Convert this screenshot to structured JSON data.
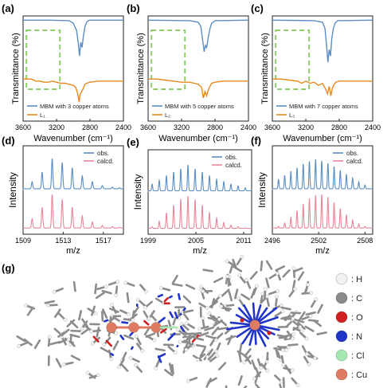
{
  "colors": {
    "blue": "#5b8ec4",
    "orange": "#e8891e",
    "pink": "#e8889b",
    "dash": "#8fce68",
    "H": "#f2f2f2",
    "C": "#8a8a8a",
    "O": "#d01f1f",
    "N": "#2034c8",
    "Cl": "#a6e8b4",
    "Cu": "#e07b63"
  },
  "chart_data": [
    {
      "panel": "(a)",
      "type": "line",
      "xlabel": "Wavenumber (cm⁻¹)",
      "ylabel": "Transmittance (%)",
      "xlim": [
        3600,
        2400
      ],
      "x_ticks": [
        "3600",
        "3200",
        "2800",
        "2400"
      ],
      "legend": [
        "MBM with 3 copper atoms",
        "L₁"
      ],
      "legend_position": "bottom-left",
      "series": [
        {
          "name": "MBM with 3 copper atoms",
          "x": [
            3600,
            3300,
            3050,
            3000,
            2960,
            2940,
            2925,
            2910,
            2895,
            2880,
            2860,
            2840,
            2820,
            2800,
            2400
          ],
          "y": [
            0.96,
            0.96,
            0.955,
            0.93,
            0.86,
            0.74,
            0.62,
            0.75,
            0.7,
            0.8,
            0.9,
            0.94,
            0.955,
            0.96,
            0.96
          ]
        },
        {
          "name": "L₁",
          "x": [
            3600,
            3500,
            3450,
            3400,
            3350,
            3300,
            3250,
            3200,
            3150,
            3100,
            3050,
            3000,
            2970,
            2950,
            2930,
            2920,
            2900,
            2880,
            2860,
            2840,
            2800,
            2700,
            2600,
            2500,
            2400
          ],
          "y": [
            0.4,
            0.4,
            0.38,
            0.38,
            0.37,
            0.37,
            0.38,
            0.37,
            0.36,
            0.36,
            0.35,
            0.34,
            0.32,
            0.27,
            0.18,
            0.25,
            0.28,
            0.31,
            0.35,
            0.36,
            0.37,
            0.38,
            0.38,
            0.38,
            0.38
          ]
        }
      ]
    },
    {
      "panel": "(b)",
      "type": "line",
      "xlabel": "Wavenumber (cm⁻¹)",
      "ylabel": "Transmittance (%)",
      "xlim": [
        3600,
        2400
      ],
      "x_ticks": [
        "3600",
        "3200",
        "2800",
        "2400"
      ],
      "legend": [
        "MBM with 5 copper atoms",
        "L₂"
      ],
      "legend_position": "bottom-left",
      "series": [
        {
          "name": "MBM with 5 copper atoms",
          "x": [
            3600,
            3100,
            3000,
            2970,
            2950,
            2930,
            2915,
            2900,
            2880,
            2860,
            2840,
            2800,
            2400
          ],
          "y": [
            0.96,
            0.955,
            0.94,
            0.9,
            0.78,
            0.66,
            0.72,
            0.7,
            0.8,
            0.88,
            0.93,
            0.955,
            0.96
          ]
        },
        {
          "name": "L₂",
          "x": [
            3600,
            3500,
            3400,
            3300,
            3200,
            3100,
            3050,
            3000,
            2960,
            2940,
            2920,
            2900,
            2880,
            2860,
            2840,
            2800,
            2700,
            2600,
            2500,
            2400
          ],
          "y": [
            0.4,
            0.4,
            0.39,
            0.38,
            0.37,
            0.37,
            0.36,
            0.35,
            0.32,
            0.22,
            0.28,
            0.24,
            0.3,
            0.33,
            0.36,
            0.37,
            0.38,
            0.38,
            0.38,
            0.38
          ]
        }
      ]
    },
    {
      "panel": "(c)",
      "type": "line",
      "xlabel": "Wavenumber (cm⁻¹)",
      "ylabel": "Transmittance (%)",
      "xlim": [
        3600,
        2400
      ],
      "x_ticks": [
        "3600",
        "3200",
        "2800",
        "2400"
      ],
      "legend": [
        "MBM with 7 copper atoms",
        "L₃"
      ],
      "legend_position": "bottom-left",
      "series": [
        {
          "name": "MBM with 7 copper atoms",
          "x": [
            3600,
            3100,
            3000,
            2970,
            2950,
            2935,
            2920,
            2905,
            2890,
            2870,
            2850,
            2820,
            2400
          ],
          "y": [
            0.96,
            0.955,
            0.94,
            0.88,
            0.7,
            0.56,
            0.68,
            0.62,
            0.78,
            0.88,
            0.93,
            0.955,
            0.96
          ]
        },
        {
          "name": "L₃",
          "x": [
            3600,
            3500,
            3400,
            3300,
            3250,
            3200,
            3150,
            3100,
            3050,
            3000,
            2960,
            2940,
            2920,
            2900,
            2880,
            2860,
            2840,
            2800,
            2700,
            2600,
            2500,
            2400
          ],
          "y": [
            0.4,
            0.4,
            0.39,
            0.38,
            0.36,
            0.38,
            0.36,
            0.37,
            0.34,
            0.36,
            0.3,
            0.26,
            0.33,
            0.24,
            0.32,
            0.35,
            0.37,
            0.38,
            0.38,
            0.38,
            0.38,
            0.38
          ]
        }
      ]
    },
    {
      "panel": "(d)",
      "type": "line",
      "xlabel": "m/z",
      "ylabel": "Intensity",
      "xlim": [
        1509,
        1519
      ],
      "x_ticks": [
        "1509",
        "1513",
        "1517"
      ],
      "legend": [
        "obs.",
        "calcd."
      ],
      "legend_position": "top-right",
      "series": [
        {
          "name": "obs.",
          "peaks_x": [
            1509.9,
            1510.9,
            1511.9,
            1512.9,
            1513.9,
            1514.9,
            1515.9,
            1516.9,
            1517.9,
            1518.6
          ],
          "peaks_y": [
            0.22,
            0.52,
            0.95,
            0.82,
            0.66,
            0.4,
            0.22,
            0.1,
            0.05,
            0.03
          ]
        },
        {
          "name": "calcd.",
          "peaks_x": [
            1509.9,
            1510.9,
            1511.9,
            1512.9,
            1513.9,
            1514.9,
            1515.9,
            1516.9,
            1517.9,
            1518.6
          ],
          "peaks_y": [
            0.28,
            0.62,
            1.0,
            0.85,
            0.62,
            0.36,
            0.18,
            0.08,
            0.04,
            0.02
          ]
        }
      ]
    },
    {
      "panel": "(e)",
      "type": "line",
      "xlabel": "m/z",
      "ylabel": "Intensity",
      "xlim": [
        1999,
        2012
      ],
      "x_ticks": [
        "1999",
        "2005",
        "2011"
      ],
      "legend": [
        "obs.",
        "calcd."
      ],
      "legend_position": "top-right",
      "series": [
        {
          "name": "obs.",
          "peaks_x": [
            1999.5,
            2000.4,
            2001.3,
            2002.2,
            2003.1,
            2004.0,
            2004.9,
            2005.8,
            2006.7,
            2007.6,
            2008.5,
            2009.4,
            2010.3,
            2011.2
          ],
          "peaks_y": [
            0.22,
            0.35,
            0.5,
            0.62,
            0.72,
            0.85,
            0.72,
            0.62,
            0.5,
            0.38,
            0.3,
            0.22,
            0.16,
            0.1
          ]
        },
        {
          "name": "calcd.",
          "peaks_x": [
            1999.5,
            2000.4,
            2001.3,
            2002.2,
            2003.1,
            2004.0,
            2004.9,
            2005.8,
            2006.7,
            2007.6,
            2008.5,
            2009.4,
            2010.3,
            2011.2
          ],
          "peaks_y": [
            0.05,
            0.22,
            0.48,
            0.72,
            0.92,
            1.0,
            0.9,
            0.72,
            0.5,
            0.32,
            0.18,
            0.1,
            0.05,
            0.02
          ]
        }
      ]
    },
    {
      "panel": "(f)",
      "type": "line",
      "xlabel": "m/z",
      "ylabel": "Intensity",
      "xlim": [
        2496,
        2509
      ],
      "x_ticks": [
        "2496",
        "2502",
        "2508"
      ],
      "legend": [
        "obs.",
        "calcd."
      ],
      "legend_position": "top-right",
      "series": [
        {
          "name": "obs.",
          "peaks_x": [
            2496.8,
            2497.6,
            2498.4,
            2499.2,
            2500.0,
            2500.8,
            2501.6,
            2502.4,
            2503.2,
            2504.0,
            2504.8,
            2505.6,
            2506.4,
            2507.2,
            2508.0
          ],
          "peaks_y": [
            0.3,
            0.42,
            0.55,
            0.66,
            0.78,
            0.86,
            0.92,
            0.88,
            0.8,
            0.7,
            0.58,
            0.46,
            0.34,
            0.22,
            0.12
          ]
        },
        {
          "name": "calcd.",
          "peaks_x": [
            2496.8,
            2497.6,
            2498.4,
            2499.2,
            2500.0,
            2500.8,
            2501.6,
            2502.4,
            2503.2,
            2504.0,
            2504.8,
            2505.6,
            2506.4,
            2507.2,
            2508.0
          ],
          "peaks_y": [
            0.05,
            0.15,
            0.32,
            0.52,
            0.72,
            0.88,
            0.98,
            1.0,
            0.92,
            0.76,
            0.58,
            0.4,
            0.24,
            0.12,
            0.05
          ]
        }
      ]
    }
  ],
  "structure_panel": {
    "label": "(g)",
    "legend": [
      {
        "symbol": "H",
        "text": ": H"
      },
      {
        "symbol": "C",
        "text": ": C"
      },
      {
        "symbol": "O",
        "text": ": O"
      },
      {
        "symbol": "N",
        "text": ": N"
      },
      {
        "symbol": "Cl",
        "text": ": Cl"
      },
      {
        "symbol": "Cu",
        "text": ": Cu"
      }
    ]
  }
}
